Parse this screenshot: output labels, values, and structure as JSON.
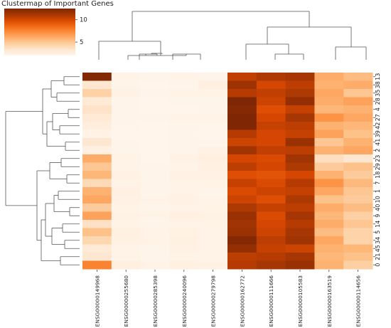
{
  "chart_data": {
    "type": "heatmap",
    "title": "Clustermap of Important Genes",
    "columns": [
      "ENSG00000149968",
      "ENSG00000255680",
      "ENSG00000285398",
      "ENSG00000240096",
      "ENSG00000279798",
      "ENSG00000162772",
      "ENSG00000111666",
      "ENSG00000105583",
      "ENSG00000163519",
      "ENSG00000114656"
    ],
    "rows": [
      "13",
      "38",
      "35",
      "28",
      "4",
      "27",
      "42",
      "39",
      "41",
      "2",
      "23",
      "29",
      "18",
      "7",
      "1",
      "10",
      "40",
      "9",
      "14",
      "5",
      "34",
      "45",
      "21",
      "0"
    ],
    "colorbar": {
      "ticks": [
        5,
        10
      ],
      "range": [
        2,
        12.5
      ],
      "colormap": "Oranges"
    },
    "values": [
      [
        12.4,
        2.2,
        2.1,
        2.2,
        2.1,
        10.5,
        11.0,
        11.2,
        6.0,
        5.4
      ],
      [
        3.2,
        2.1,
        2.0,
        2.1,
        2.5,
        11.5,
        10.0,
        10.6,
        5.8,
        6.0
      ],
      [
        4.5,
        2.3,
        2.1,
        2.2,
        2.2,
        10.8,
        10.5,
        11.0,
        6.2,
        5.0
      ],
      [
        3.0,
        2.1,
        2.0,
        2.1,
        2.1,
        12.5,
        10.2,
        11.8,
        6.0,
        6.4
      ],
      [
        3.5,
        2.1,
        2.0,
        2.0,
        2.1,
        12.3,
        9.6,
        10.4,
        5.6,
        5.8
      ],
      [
        3.0,
        2.1,
        2.1,
        2.2,
        2.2,
        12.5,
        10.0,
        11.2,
        7.0,
        6.2
      ],
      [
        2.6,
        2.1,
        2.0,
        2.1,
        2.1,
        12.8,
        10.4,
        10.6,
        5.8,
        5.6
      ],
      [
        2.2,
        2.0,
        2.0,
        2.1,
        2.0,
        10.8,
        10.0,
        10.4,
        6.4,
        5.2
      ],
      [
        3.2,
        2.1,
        2.0,
        2.1,
        2.1,
        10.2,
        10.0,
        11.6,
        5.0,
        5.8
      ],
      [
        2.4,
        2.1,
        2.0,
        2.1,
        2.3,
        11.4,
        10.5,
        10.6,
        5.8,
        6.2
      ],
      [
        6.0,
        2.2,
        2.0,
        2.3,
        2.5,
        10.0,
        9.8,
        11.4,
        3.8,
        3.2
      ],
      [
        5.0,
        2.2,
        2.1,
        2.2,
        2.4,
        10.6,
        10.0,
        11.0,
        4.8,
        5.2
      ],
      [
        5.6,
        2.3,
        2.1,
        2.3,
        2.3,
        9.6,
        9.4,
        10.0,
        5.8,
        4.8
      ],
      [
        4.0,
        2.2,
        2.1,
        2.2,
        2.2,
        10.4,
        9.8,
        10.8,
        7.0,
        5.5
      ],
      [
        5.8,
        2.4,
        2.1,
        2.2,
        2.1,
        9.8,
        10.2,
        10.4,
        6.2,
        5.0
      ],
      [
        6.2,
        2.3,
        2.2,
        2.3,
        2.2,
        10.2,
        9.6,
        11.0,
        5.2,
        4.8
      ],
      [
        4.8,
        2.2,
        2.1,
        2.2,
        2.2,
        11.0,
        10.4,
        10.6,
        6.0,
        5.4
      ],
      [
        6.4,
        2.3,
        2.2,
        2.4,
        2.3,
        11.6,
        9.8,
        11.2,
        5.6,
        4.6
      ],
      [
        3.6,
        2.2,
        2.1,
        2.2,
        2.2,
        11.4,
        10.0,
        10.8,
        6.0,
        5.0
      ],
      [
        5.2,
        2.4,
        2.2,
        2.3,
        2.2,
        11.6,
        10.2,
        11.2,
        5.4,
        4.4
      ],
      [
        4.2,
        2.3,
        2.2,
        2.4,
        2.2,
        12.3,
        10.6,
        11.4,
        6.2,
        4.4
      ],
      [
        3.0,
        2.2,
        2.1,
        2.3,
        2.2,
        11.8,
        10.4,
        10.2,
        5.8,
        5.6
      ],
      [
        3.2,
        2.2,
        2.1,
        2.2,
        2.2,
        10.6,
        10.8,
        11.2,
        5.6,
        5.2
      ],
      [
        7.6,
        2.5,
        2.2,
        2.4,
        2.3,
        10.8,
        11.2,
        11.6,
        5.8,
        4.6
      ]
    ]
  }
}
